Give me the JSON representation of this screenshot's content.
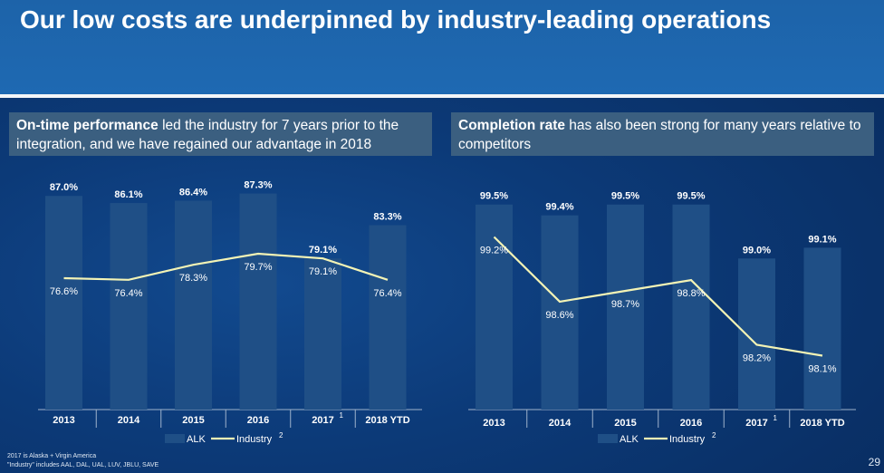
{
  "slide": {
    "title": "Our low costs are underpinned by industry-leading operations",
    "page_number": "29",
    "footnotes": [
      "2017 is Alaska + Virgin America",
      "\"Industry\" includes AAL, DAL, UAL, LUV, JBLU, SAVE"
    ]
  },
  "left_panel": {
    "subtitle_bold": "On-time performance",
    "subtitle_rest": " led the industry for 7 years prior to the integration, and we have regained our advantage in 2018"
  },
  "right_panel": {
    "subtitle_bold": "Completion rate",
    "subtitle_rest": " has also been strong for many years relative to competitors"
  },
  "colors": {
    "bar": "#1f4f86",
    "line": "#f3f3b5",
    "title_band": "#1e66ae",
    "subtitle_bg": "#3b5f80"
  },
  "chart_data": [
    {
      "type": "bar",
      "categories": [
        "2013",
        "2014",
        "2015",
        "2016",
        "2017",
        "2018 YTD"
      ],
      "category_superscripts": [
        "",
        "",
        "",
        "",
        "1",
        ""
      ],
      "series": [
        {
          "name": "ALK",
          "type": "bar",
          "values": [
            87.0,
            86.1,
            86.4,
            87.3,
            79.1,
            83.3
          ],
          "labels": [
            "87.0%",
            "86.1%",
            "86.4%",
            "87.3%",
            "79.1%",
            "83.3%"
          ]
        },
        {
          "name": "Industry",
          "superscript": "2",
          "type": "line",
          "values": [
            76.6,
            76.4,
            78.3,
            79.7,
            79.1,
            76.4
          ],
          "labels": [
            "76.6%",
            "76.4%",
            "78.3%",
            "79.7%",
            "79.1%",
            "76.4%"
          ]
        }
      ],
      "legend": "bottom-center",
      "ylim": [
        60,
        90
      ]
    },
    {
      "type": "bar",
      "categories": [
        "2013",
        "2014",
        "2015",
        "2016",
        "2017",
        "2018 YTD"
      ],
      "category_superscripts": [
        "",
        "",
        "",
        "",
        "1",
        ""
      ],
      "series": [
        {
          "name": "ALK",
          "type": "bar",
          "values": [
            99.5,
            99.4,
            99.5,
            99.5,
            99.0,
            99.1
          ],
          "labels": [
            "99.5%",
            "99.4%",
            "99.5%",
            "99.5%",
            "99.0%",
            "99.1%"
          ]
        },
        {
          "name": "Industry",
          "superscript": "2",
          "type": "line",
          "values": [
            99.2,
            98.6,
            98.7,
            98.8,
            98.2,
            98.1
          ],
          "labels": [
            "99.2%",
            "98.6%",
            "98.7%",
            "98.8%",
            "98.2%",
            "98.1%"
          ]
        }
      ],
      "legend": "bottom-center",
      "ylim": [
        97.6,
        99.8
      ]
    }
  ]
}
